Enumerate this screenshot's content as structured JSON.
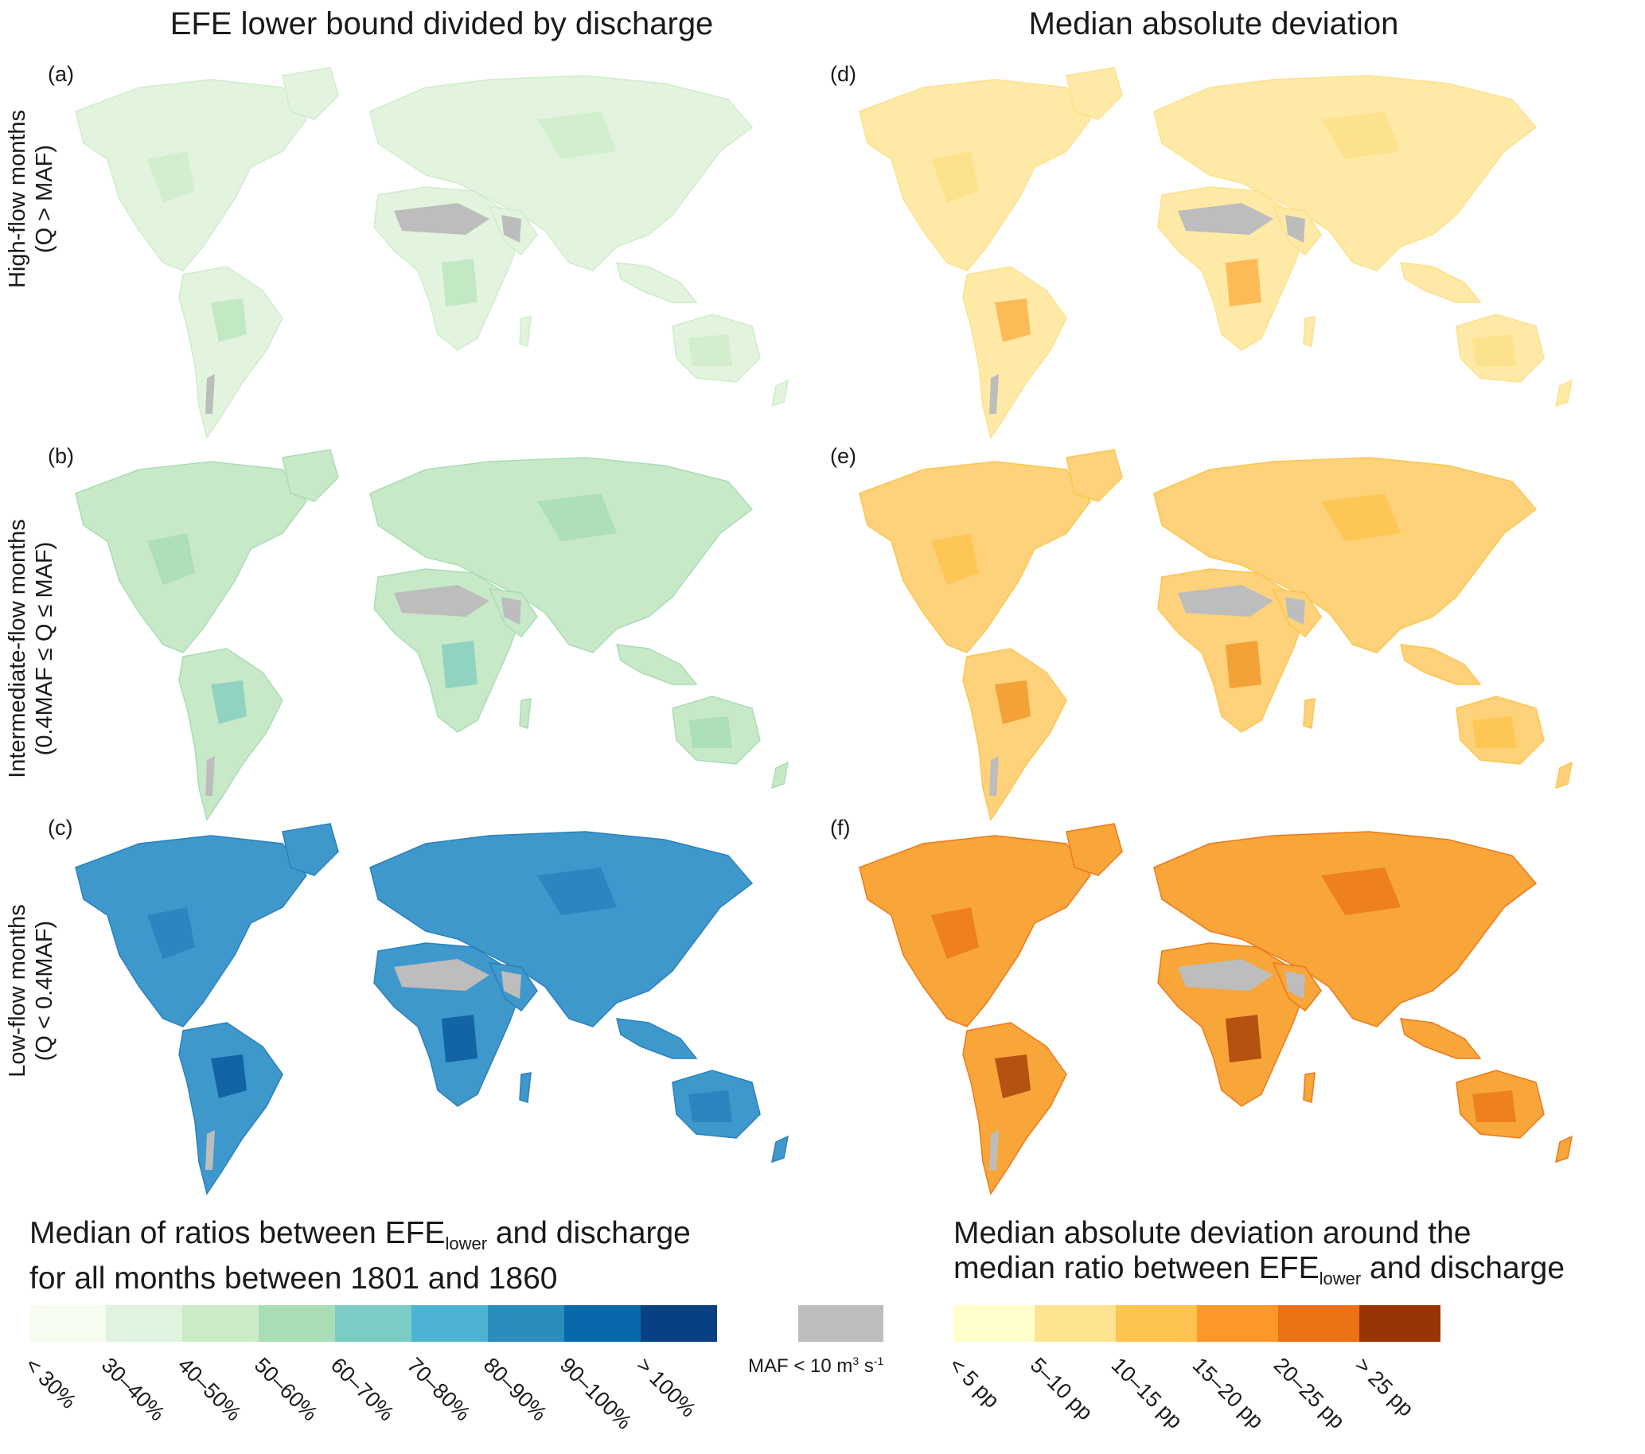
{
  "titles": {
    "left": "EFE lower bound divided by discharge",
    "right": "Median absolute deviation"
  },
  "panels": {
    "a": "(a)",
    "b": "(b)",
    "c": "(c)",
    "d": "(d)",
    "e": "(e)",
    "f": "(f)"
  },
  "rows": [
    {
      "line1": "High-flow months",
      "line2": "(Q > MAF)"
    },
    {
      "line1": "Intermediate-flow months",
      "line2": "(0.4MAF ≤ Q ≤ MAF)"
    },
    {
      "line1": "Low-flow months",
      "line2": "(Q < 0.4MAF)"
    }
  ],
  "legend_left": {
    "title_line1_a": "Median of ratios between EFE",
    "title_line1_sub": "lower",
    "title_line1_b": " and discharge",
    "title_line2": "for all months between 1801 and 1860",
    "classes": [
      "< 30%",
      "30–40%",
      "40–50%",
      "50–60%",
      "60–70%",
      "70–80%",
      "80–90%",
      "90–100%",
      "> 100%"
    ],
    "colors": [
      "#f7fcf0",
      "#dff3df",
      "#cbebc6",
      "#a8ddb5",
      "#7bccc4",
      "#4eb3d3",
      "#2b8cbe",
      "#0868ac",
      "#084081"
    ]
  },
  "legend_maf": {
    "label_a": "MAF < 10 m",
    "label_sup1": "3",
    "label_b": " s",
    "label_sup2": "-1",
    "color": "#bdbdbd"
  },
  "legend_right": {
    "title_line1": "Median absolute deviation around the",
    "title_line2_a": "median ratio between EFE",
    "title_line2_sub": "lower",
    "title_line2_b": " and discharge",
    "classes": [
      "< 5 pp",
      "5–10 pp",
      "10–15 pp",
      "15–20 pp",
      "20–25 pp",
      "> 25 pp"
    ],
    "colors": [
      "#ffffcc",
      "#fee391",
      "#fec44f",
      "#fe9929",
      "#ec7014",
      "#993404"
    ]
  },
  "map_fills": {
    "a": {
      "base": "#e2f4de",
      "patch": "#cfeccb",
      "dark": "#bde5c0"
    },
    "b": {
      "base": "#c8e9c8",
      "patch": "#a8ddb5",
      "dark": "#86cfc0"
    },
    "c": {
      "base": "#3f98cc",
      "patch": "#2b80bb",
      "dark": "#0a5a9e"
    },
    "d": {
      "base": "#feeaa6",
      "patch": "#fde08a",
      "dark": "#fdb34a"
    },
    "e": {
      "base": "#fdd27a",
      "patch": "#fec44f",
      "dark": "#f19a2b"
    },
    "f": {
      "base": "#f8a53a",
      "patch": "#ec7a18",
      "dark": "#a9420a"
    }
  }
}
